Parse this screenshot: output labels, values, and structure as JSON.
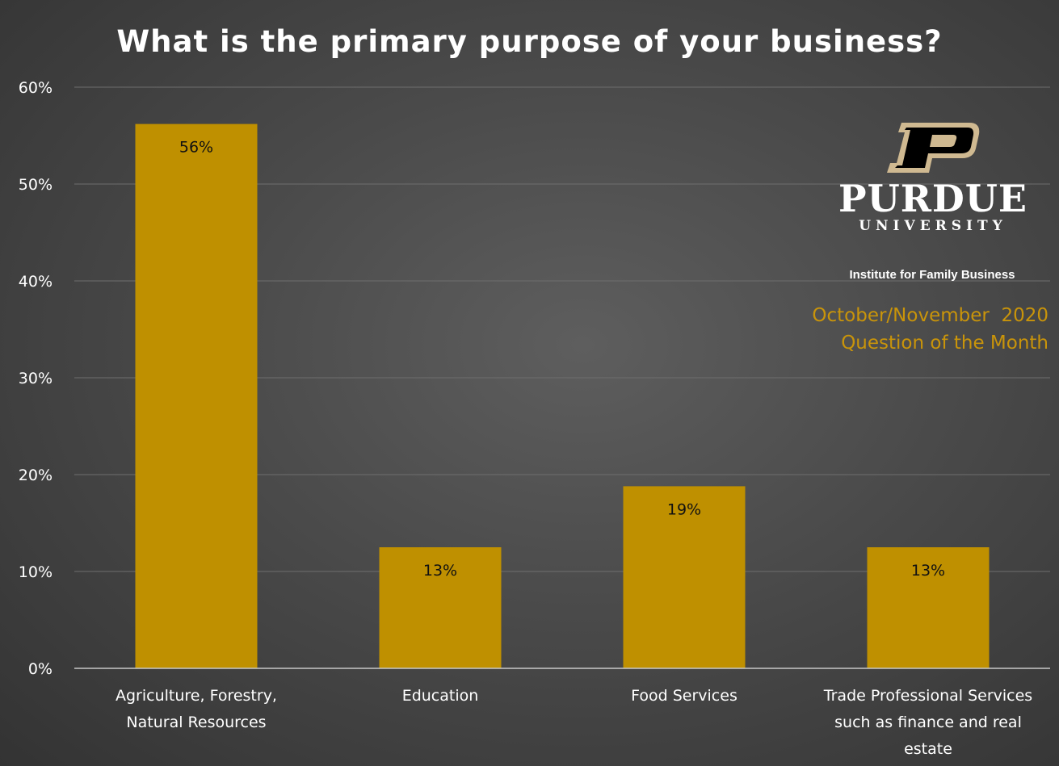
{
  "chart_data": {
    "type": "bar",
    "title": "What is the primary purpose of your business?",
    "categories": [
      [
        "Agriculture, Forestry,",
        "Natural Resources"
      ],
      [
        "Education"
      ],
      [
        "Food Services"
      ],
      [
        "Trade Professional Services",
        "such as finance and real",
        "estate"
      ]
    ],
    "values": [
      56.2,
      12.5,
      18.8,
      12.5
    ],
    "data_labels": [
      "56%",
      "13%",
      "19%",
      "13%"
    ],
    "y_ticks": [
      {
        "value": 0,
        "label": "0%"
      },
      {
        "value": 10,
        "label": "10%"
      },
      {
        "value": 20,
        "label": "20%"
      },
      {
        "value": 30,
        "label": "30%"
      },
      {
        "value": 40,
        "label": "40%"
      },
      {
        "value": 50,
        "label": "50%"
      },
      {
        "value": 60,
        "label": "60%"
      }
    ],
    "ylim": [
      0,
      60
    ],
    "grid": true,
    "bar_color": "#bf9000",
    "xlabel": "",
    "ylabel": ""
  },
  "branding": {
    "logo_icon": "purdue-p-logo",
    "name": "PURDUE",
    "subname": "UNIVERSITY",
    "institute": "Institute for Family Business",
    "period": "October/November  2020",
    "series_name": "Question of the Month"
  },
  "colors": {
    "background": "#4a4a4a",
    "accent": "#c9940a",
    "text": "#ffffff"
  }
}
